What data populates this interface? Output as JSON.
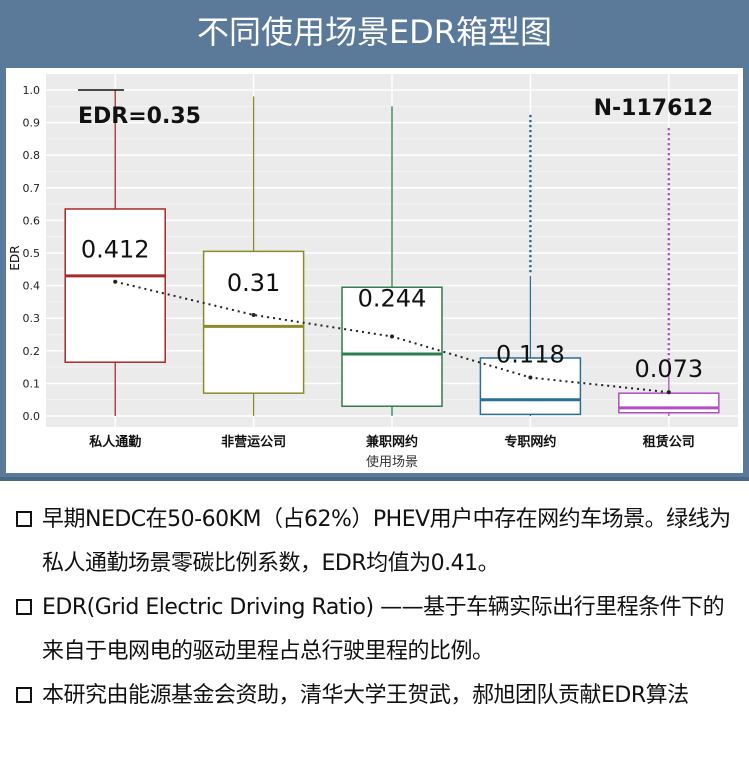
{
  "header": {
    "title": "不同使用场景EDR箱型图"
  },
  "chart_data": {
    "type": "box",
    "title": "",
    "xlabel": "使用场景",
    "ylabel": "EDR",
    "ylim": [
      0,
      1.0
    ],
    "yticks": [
      "0.0",
      "0.1",
      "0.2",
      "0.3",
      "0.4",
      "0.5",
      "0.6",
      "0.7",
      "0.8",
      "0.9",
      "1.0"
    ],
    "yticks_values": [
      0,
      0.1,
      0.2,
      0.3,
      0.4,
      0.5,
      0.6,
      0.7,
      0.8,
      0.9,
      1.0
    ],
    "categories": [
      "私人通勤",
      "非营运公司",
      "兼职网约",
      "专职网约",
      "租赁公司"
    ],
    "boxes": [
      {
        "category": "私人通勤",
        "whisker_low": 0.0,
        "q1": 0.165,
        "median": 0.43,
        "q3": 0.635,
        "whisker_high": 1.0,
        "mean": 0.412,
        "mean_label": "0.412",
        "color": "#a52a2a"
      },
      {
        "category": "非营运公司",
        "whisker_low": 0.0,
        "q1": 0.07,
        "median": 0.275,
        "q3": 0.505,
        "whisker_high": 0.98,
        "mean": 0.31,
        "mean_label": "0.31",
        "color": "#8b8b2a"
      },
      {
        "category": "兼职网约",
        "whisker_low": 0.0,
        "q1": 0.03,
        "median": 0.19,
        "q3": 0.395,
        "whisker_high": 0.95,
        "mean": 0.244,
        "mean_label": "0.244",
        "color": "#2e7d4f"
      },
      {
        "category": "专职网约",
        "whisker_low": 0.0,
        "q1": 0.005,
        "median": 0.05,
        "q3": 0.178,
        "whisker_high": 0.43,
        "outliers_max": 0.92,
        "mean": 0.118,
        "mean_label": "0.118",
        "color": "#2a6f97"
      },
      {
        "category": "租赁公司",
        "whisker_low": 0.0,
        "q1": 0.01,
        "median": 0.025,
        "q3": 0.07,
        "whisker_high": 0.16,
        "outliers_max": 0.88,
        "mean": 0.073,
        "mean_label": "0.073",
        "color": "#b04fc0"
      }
    ],
    "annotations": {
      "edr": "EDR=0.35",
      "n": "N-117612"
    },
    "grid": true
  },
  "notes": [
    "早期NEDC在50-60KM（占62%）PHEV用户中存在网约车场景。绿线为私人通勤场景零碳比例系数，EDR均值为0.41。",
    "EDR(Grid Electric Driving Ratio) ——基于车辆实际出行里程条件下的来自于电网电的驱动里程占总行驶里程的比例。",
    "本研究由能源基金会资助，清华大学王贺武，郝旭团队贡献EDR算法"
  ]
}
